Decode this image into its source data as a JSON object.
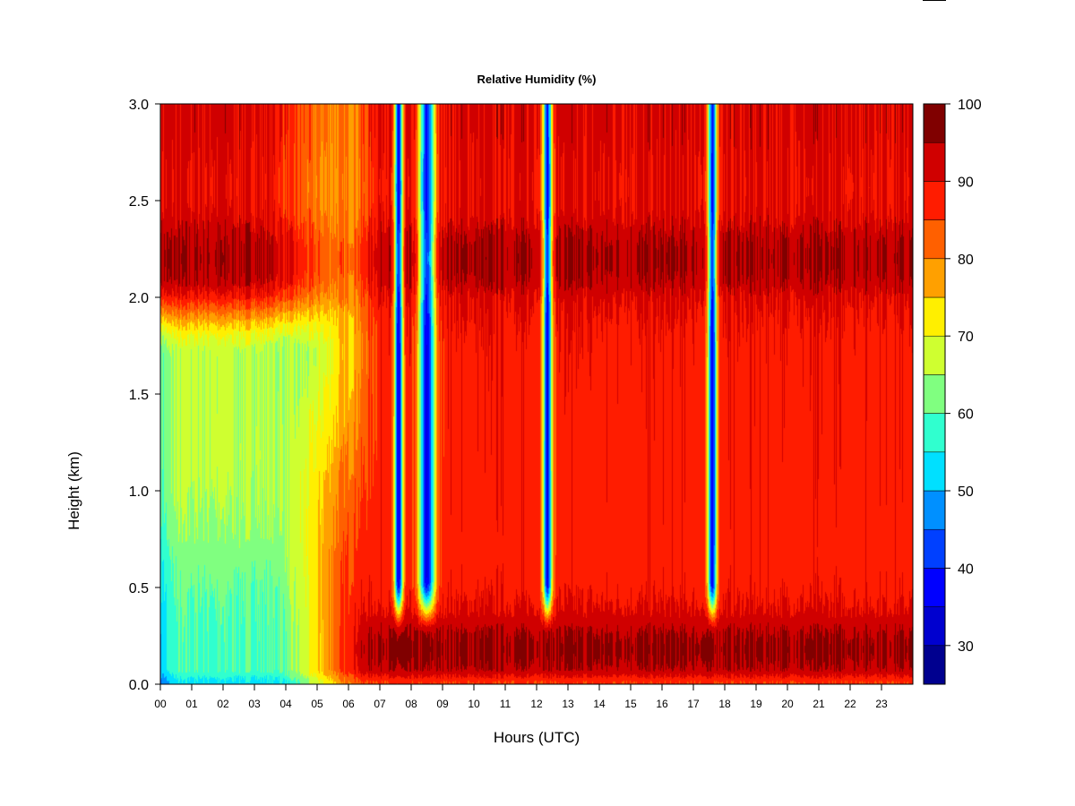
{
  "chart_data": {
    "type": "heatmap",
    "title": "Relative Humidity (%)",
    "xlabel": "Hours (UTC)",
    "ylabel": "Height (km)",
    "xlim": [
      0,
      24
    ],
    "ylim": [
      0.0,
      3.0
    ],
    "x_ticks": [
      "00",
      "01",
      "02",
      "03",
      "04",
      "05",
      "06",
      "07",
      "08",
      "09",
      "10",
      "11",
      "12",
      "13",
      "14",
      "15",
      "16",
      "17",
      "18",
      "19",
      "20",
      "21",
      "22",
      "23"
    ],
    "y_ticks": [
      "0.0",
      "0.5",
      "1.0",
      "1.5",
      "2.0",
      "2.5",
      "3.0"
    ],
    "colorbar": {
      "levels": [
        25,
        30,
        35,
        40,
        45,
        50,
        55,
        60,
        65,
        70,
        75,
        80,
        85,
        90,
        95,
        100
      ],
      "ticks": [
        "30",
        "40",
        "50",
        "60",
        "70",
        "80",
        "90",
        "100"
      ],
      "colors": [
        "#00008f",
        "#0000cf",
        "#0000ff",
        "#0040ff",
        "#0090ff",
        "#00e0ff",
        "#30ffcf",
        "#80ff80",
        "#cfff30",
        "#ffef00",
        "#ffa000",
        "#ff6000",
        "#ff1c00",
        "#d00000",
        "#800000"
      ]
    },
    "features": {
      "upper_moist_layer_height_km": 2.2,
      "dry_slots_hours": [
        7.6,
        8.5,
        12.35,
        17.6
      ],
      "dry_slot_min_rh": 35,
      "early_dry_region_rh": 52,
      "surface_layer_top_km": 0.3
    }
  }
}
